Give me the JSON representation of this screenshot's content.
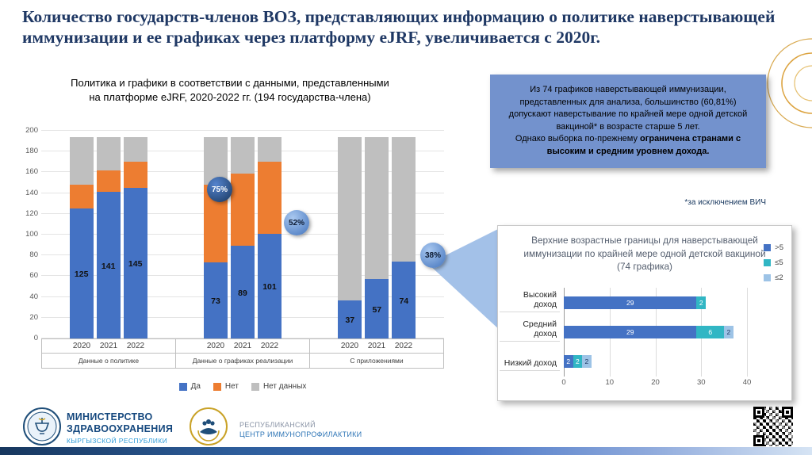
{
  "slide": {
    "title": "Количество государств-членов ВОЗ, представляющих информацию о политике наверстывающей иммунизации и ее графиках через платформу eJRF, увеличивается с 2020г."
  },
  "callout": {
    "paragraph1": "Из 74 графиков наверстывающей иммунизации, представленных для анализа, большинство (60,81%) допускают наверстывание по крайней мере одной детской вакциной* в возрасте старше 5 лет.",
    "paragraph2_prefix": "Однако выборка по-прежнему ",
    "paragraph2_bold": "ограничена странами с высоким и средним уровнем дохода.",
    "footnote": "*за исключением ВИЧ"
  },
  "chart_data": [
    {
      "type": "bar",
      "stacked": true,
      "title": "Политика и графики в соответствии с данными, представленными на платформе eJRF, 2020-2022 гг. (194 государства-члена)",
      "ylim": [
        0,
        200
      ],
      "ytick_step": 20,
      "series": [
        {
          "name": "Да",
          "color": "#4472C4"
        },
        {
          "name": "Нет",
          "color": "#ED7D31"
        },
        {
          "name": "Нет данных",
          "color": "#BFBFBF"
        }
      ],
      "groups": [
        {
          "label": "Данные о политике",
          "bars": [
            {
              "year": "2020",
              "values": [
                125,
                23,
                46
              ]
            },
            {
              "year": "2021",
              "values": [
                141,
                21,
                32
              ]
            },
            {
              "year": "2022",
              "values": [
                145,
                25,
                24
              ]
            }
          ]
        },
        {
          "label": "Данные о графиках реализации",
          "bars": [
            {
              "year": "2020",
              "values": [
                73,
                75,
                46
              ]
            },
            {
              "year": "2021",
              "values": [
                89,
                70,
                35
              ]
            },
            {
              "year": "2022",
              "values": [
                101,
                69,
                24
              ]
            }
          ]
        },
        {
          "label": "С приложениями",
          "bars": [
            {
              "year": "2020",
              "values": [
                37,
                0,
                157
              ]
            },
            {
              "year": "2021",
              "values": [
                57,
                0,
                137
              ]
            },
            {
              "year": "2022",
              "values": [
                74,
                0,
                120
              ]
            }
          ]
        }
      ],
      "annotations": [
        {
          "text": "75%"
        },
        {
          "text": "52%"
        },
        {
          "text": "38%"
        }
      ]
    },
    {
      "type": "bar",
      "orientation": "horizontal",
      "stacked": true,
      "title": "Верхние возрастные границы для наверстывающей иммунизации по крайней мере одной детской вакциной (74 графика)",
      "categories": [
        "Высокий доход",
        "Средний доход",
        "Низкий доход"
      ],
      "series": [
        {
          "name": ">5",
          "color": "#4472C4",
          "values": [
            29,
            29,
            2
          ]
        },
        {
          "name": "≤5",
          "color": "#31B6C4",
          "values": [
            2,
            6,
            2
          ]
        },
        {
          "name": "≤2",
          "color": "#9DC3E6",
          "values": [
            0,
            2,
            2
          ]
        }
      ],
      "xlim": [
        0,
        40
      ],
      "xticks": [
        0,
        10,
        20,
        30,
        40
      ]
    }
  ],
  "footer": {
    "ministry": {
      "line1": "МИНИСТЕРСТВО",
      "line2": "ЗДРАВООХРАНЕНИЯ",
      "line3": "КЫРГЫЗСКОЙ РЕСПУБЛИКИ"
    },
    "center": {
      "line1": "РЕСПУБЛИКАНСКИЙ",
      "line2": "ЦЕНТР ИММУНОПРОФИЛАКТИКИ"
    }
  }
}
